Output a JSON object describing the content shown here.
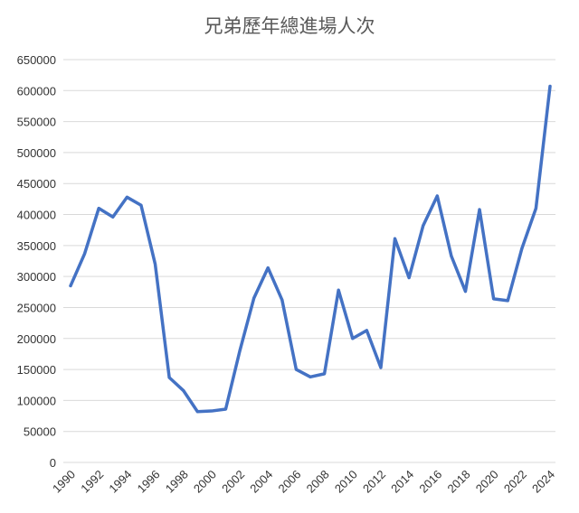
{
  "chart_data": {
    "type": "line",
    "title": "兄弟歷年總進場人次",
    "xlabel": "",
    "ylabel": "",
    "ylim": [
      0,
      650000
    ],
    "ytick_step": 50000,
    "grid": true,
    "legend": "none",
    "x_tick_labels": [
      "1990",
      "1992",
      "1994",
      "1996",
      "1998",
      "2000",
      "2002",
      "2004",
      "2006",
      "2008",
      "2010",
      "2012",
      "2014",
      "2016",
      "2018",
      "2020",
      "2022",
      "2024"
    ],
    "x": [
      1990,
      1991,
      1992,
      1993,
      1994,
      1995,
      1996,
      1997,
      1998,
      1999,
      2000,
      2001,
      2002,
      2003,
      2004,
      2005,
      2006,
      2007,
      2008,
      2009,
      2010,
      2011,
      2012,
      2013,
      2014,
      2015,
      2016,
      2017,
      2018,
      2019,
      2020,
      2021,
      2022,
      2023,
      2024
    ],
    "series": [
      {
        "color": "#4472c4",
        "values": [
          285000,
          337000,
          410000,
          396000,
          428000,
          415000,
          320000,
          137000,
          116000,
          82000,
          83000,
          86000,
          180000,
          265000,
          314000,
          262000,
          150000,
          138000,
          143000,
          278000,
          200000,
          213000,
          153000,
          361000,
          298000,
          382000,
          430000,
          333000,
          276000,
          408000,
          264000,
          261000,
          345000,
          410000,
          607000
        ]
      }
    ]
  }
}
